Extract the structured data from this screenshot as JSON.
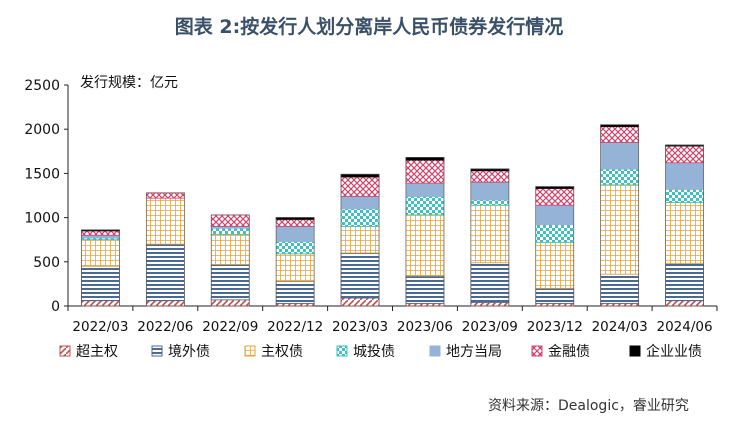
{
  "title": "图表 2:按发行人划分离岸人民币债券发行情况",
  "source": "资料来源：Dealogic，睿业研究",
  "chart_data": {
    "type": "bar",
    "stacked": true,
    "unit_label": "发行规模：亿元",
    "categories": [
      "2022/03",
      "2022/06",
      "2022/09",
      "2022/12",
      "2023/03",
      "2023/06",
      "2023/09",
      "2023/12",
      "2024/03",
      "2024/06"
    ],
    "ylim": [
      0,
      2500
    ],
    "yticks": [
      0,
      500,
      1000,
      1500,
      2000,
      2500
    ],
    "grid": false,
    "legend_position": "bottom",
    "series": [
      {
        "name": "超主权",
        "color": "#c0504d",
        "pattern": "diag",
        "values": [
          60,
          60,
          70,
          30,
          90,
          30,
          40,
          30,
          30,
          60
        ]
      },
      {
        "name": "境外债",
        "color": "#4a6a94",
        "pattern": "hstripe",
        "values": [
          390,
          640,
          400,
          250,
          510,
          310,
          450,
          170,
          330,
          420
        ]
      },
      {
        "name": "主权债",
        "color": "#e8a23a",
        "pattern": "grid",
        "values": [
          300,
          520,
          340,
          310,
          300,
          690,
          650,
          520,
          1010,
          690
        ]
      },
      {
        "name": "城投债",
        "color": "#3fbfbf",
        "pattern": "dots",
        "values": [
          20,
          0,
          70,
          140,
          200,
          210,
          60,
          200,
          180,
          150
        ]
      },
      {
        "name": "地方当局",
        "color": "#95b3d7",
        "pattern": "solid",
        "values": [
          30,
          0,
          20,
          170,
          140,
          150,
          200,
          220,
          300,
          300
        ]
      },
      {
        "name": "金融债",
        "color": "#d0436b",
        "pattern": "cross",
        "values": [
          50,
          60,
          130,
          80,
          220,
          260,
          130,
          190,
          180,
          190
        ]
      },
      {
        "name": "企业业债",
        "color": "#000000",
        "pattern": "solid",
        "values": [
          10,
          0,
          0,
          20,
          30,
          30,
          20,
          20,
          20,
          10
        ]
      }
    ]
  }
}
